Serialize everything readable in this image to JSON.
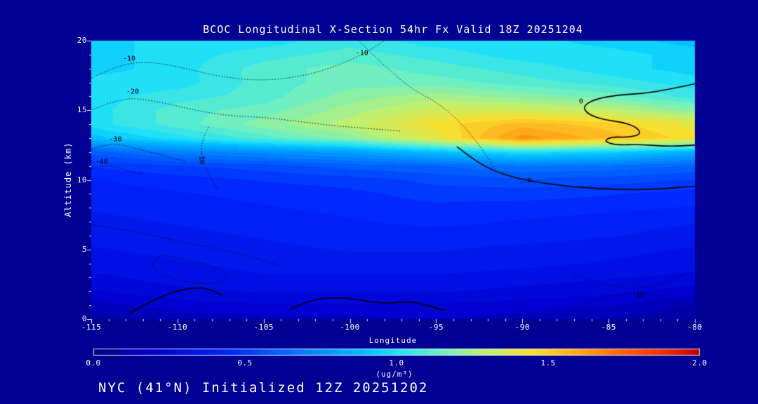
{
  "footer": "NYC (41°N) Initialized 12Z 20251202",
  "background_color": "#000092",
  "text_color": "#ffffff",
  "chart_data": {
    "type": "heatmap",
    "title": "BCOC Longitudinal X-Section 54hr  Fx Valid 18Z 20251204",
    "xlabel": "Longitude",
    "ylabel": "Altitude (km)",
    "x_range": [
      -115,
      -80
    ],
    "y_range": [
      0,
      20
    ],
    "x_ticks": [
      "-115",
      "-110",
      "-105",
      "-100",
      "-95",
      "-90",
      "-85",
      "-80"
    ],
    "y_ticks": [
      "0",
      "5",
      "10",
      "15",
      "20"
    ],
    "x": [
      -115,
      -110,
      -105,
      -100,
      -95,
      -90,
      -85,
      -80
    ],
    "y": [
      0,
      1,
      2,
      3,
      4,
      5,
      6,
      7,
      8,
      9,
      10,
      11,
      12,
      13,
      14,
      15,
      16,
      17,
      18,
      19,
      20
    ],
    "values": [
      [
        0.1,
        0.14,
        0.16,
        0.16,
        0.18,
        0.15,
        0.12,
        0.08
      ],
      [
        0.15,
        0.2,
        0.22,
        0.22,
        0.22,
        0.2,
        0.18,
        0.12
      ],
      [
        0.22,
        0.26,
        0.28,
        0.28,
        0.28,
        0.26,
        0.24,
        0.2
      ],
      [
        0.26,
        0.3,
        0.32,
        0.32,
        0.32,
        0.3,
        0.28,
        0.26
      ],
      [
        0.3,
        0.32,
        0.34,
        0.35,
        0.35,
        0.34,
        0.32,
        0.3
      ],
      [
        0.32,
        0.34,
        0.36,
        0.38,
        0.38,
        0.36,
        0.34,
        0.32
      ],
      [
        0.34,
        0.36,
        0.38,
        0.4,
        0.4,
        0.4,
        0.38,
        0.35
      ],
      [
        0.36,
        0.38,
        0.4,
        0.42,
        0.44,
        0.42,
        0.4,
        0.38
      ],
      [
        0.38,
        0.4,
        0.42,
        0.44,
        0.46,
        0.45,
        0.44,
        0.42
      ],
      [
        0.4,
        0.42,
        0.44,
        0.46,
        0.5,
        0.5,
        0.48,
        0.45
      ],
      [
        0.42,
        0.45,
        0.48,
        0.5,
        0.54,
        0.56,
        0.55,
        0.52
      ],
      [
        0.48,
        0.52,
        0.55,
        0.6,
        0.62,
        0.68,
        0.66,
        0.62
      ],
      [
        0.6,
        0.7,
        0.75,
        0.8,
        0.9,
        1.0,
        0.95,
        0.85
      ],
      [
        0.9,
        1.0,
        1.1,
        1.2,
        1.4,
        1.65,
        1.55,
        1.45
      ],
      [
        1.0,
        1.1,
        1.2,
        1.3,
        1.45,
        1.55,
        1.5,
        1.4
      ],
      [
        1.0,
        1.1,
        1.15,
        1.25,
        1.35,
        1.35,
        1.3,
        1.2
      ],
      [
        1.0,
        1.05,
        1.1,
        1.2,
        1.25,
        1.2,
        1.15,
        1.05
      ],
      [
        1.0,
        1.0,
        1.1,
        1.15,
        1.15,
        1.1,
        1.05,
        1.0
      ],
      [
        0.95,
        1.0,
        1.1,
        1.15,
        1.1,
        1.05,
        1.0,
        0.95
      ],
      [
        0.95,
        1.0,
        1.05,
        1.1,
        1.05,
        1.0,
        1.0,
        0.95
      ],
      [
        0.95,
        1.0,
        1.0,
        1.05,
        1.0,
        1.0,
        0.95,
        0.9
      ]
    ],
    "colormap_stops": [
      [
        0.0,
        "#000080"
      ],
      [
        0.2,
        "#0000d0"
      ],
      [
        0.45,
        "#0028ff"
      ],
      [
        0.7,
        "#0080ff"
      ],
      [
        0.9,
        "#00c0ff"
      ],
      [
        1.0,
        "#20e0f8"
      ],
      [
        1.15,
        "#70f0c0"
      ],
      [
        1.3,
        "#c0f070"
      ],
      [
        1.45,
        "#f8e030"
      ],
      [
        1.6,
        "#ffa818"
      ],
      [
        1.75,
        "#ff6008"
      ],
      [
        1.9,
        "#e82800"
      ],
      [
        2.0,
        "#c00000"
      ]
    ],
    "colorbar": {
      "min": 0.0,
      "max": 2.0,
      "ticks": [
        "0.0",
        "0.5",
        "1.0",
        "1.5",
        "2.0"
      ],
      "unit_label": "(ug/m³)"
    },
    "contour_lines": [
      {
        "label": "-10",
        "style": "dotted",
        "label_pos": [
          -112.8,
          18.7
        ],
        "points": [
          [
            -115,
            17.3
          ],
          [
            -113.4,
            18.3
          ],
          [
            -111.5,
            18.5
          ],
          [
            -109.5,
            18.0
          ],
          [
            -107.5,
            17.4
          ],
          [
            -105,
            17.1
          ],
          [
            -102.5,
            17.5
          ],
          [
            -100.5,
            18.3
          ],
          [
            -99,
            19.2
          ],
          [
            -98,
            20
          ]
        ]
      },
      {
        "label": "-10",
        "style": "dotted",
        "label_pos": [
          -99.3,
          19.1
        ],
        "points": [
          [
            -99.5,
            20
          ],
          [
            -98,
            18.2
          ],
          [
            -96.5,
            16.6
          ],
          [
            -95,
            15.6
          ],
          [
            -93.8,
            14.4
          ],
          [
            -92.8,
            13.0
          ],
          [
            -92,
            11.6
          ],
          [
            -91.6,
            10.8
          ]
        ]
      },
      {
        "label": "-20",
        "style": "dotted",
        "label_pos": [
          -112.6,
          16.3
        ],
        "points": [
          [
            -115,
            15.0
          ],
          [
            -113.2,
            16.0
          ],
          [
            -111,
            15.6
          ],
          [
            -109,
            15.0
          ],
          [
            -107,
            14.6
          ],
          [
            -105,
            14.5
          ],
          [
            -103,
            14.2
          ],
          [
            -101,
            13.9
          ],
          [
            -99,
            13.7
          ],
          [
            -97,
            13.5
          ]
        ]
      },
      {
        "label": "-30",
        "style": "dotted",
        "label_pos": [
          -113.6,
          12.9
        ],
        "points": [
          [
            -115,
            12.2
          ],
          [
            -113.8,
            12.7
          ],
          [
            -112.5,
            12.3
          ],
          [
            -111,
            11.8
          ],
          [
            -109.5,
            11.3
          ]
        ]
      },
      {
        "label": "-40",
        "style": "dotted",
        "label_pos": [
          -114.4,
          11.3
        ],
        "points": [
          [
            -115,
            10.8
          ],
          [
            -114.2,
            11.1
          ],
          [
            -113.2,
            10.8
          ],
          [
            -112,
            10.4
          ]
        ]
      },
      {
        "label": "-10",
        "style": "dotted",
        "rotate": 90,
        "label_pos": [
          -108.6,
          11.6
        ],
        "points": [
          [
            -108.2,
            13.8
          ],
          [
            -108.7,
            12.6
          ],
          [
            -108.5,
            11.2
          ],
          [
            -108.0,
            10.0
          ],
          [
            -107.6,
            9.2
          ]
        ]
      },
      {
        "label": "0",
        "style": "solid",
        "label_pos": [
          -89.6,
          9.9
        ],
        "points": [
          [
            -93.8,
            12.4
          ],
          [
            -93.0,
            11.6
          ],
          [
            -91.8,
            10.7
          ],
          [
            -90.3,
            10.1
          ],
          [
            -88.5,
            9.7
          ],
          [
            -86.5,
            9.45
          ],
          [
            -84.5,
            9.3
          ],
          [
            -82.5,
            9.3
          ],
          [
            -80,
            9.55
          ]
        ]
      },
      {
        "label": "0",
        "style": "solid",
        "label_pos": [
          -86.6,
          15.6
        ],
        "points": [
          [
            -80,
            16.9
          ],
          [
            -81.5,
            16.5
          ],
          [
            -83,
            16.2
          ],
          [
            -84.5,
            16.1
          ],
          [
            -85.8,
            15.8
          ],
          [
            -86.5,
            15.3
          ],
          [
            -86.2,
            14.7
          ],
          [
            -85.2,
            14.3
          ],
          [
            -84.2,
            14.15
          ],
          [
            -83.4,
            13.8
          ],
          [
            -83.1,
            13.3
          ],
          [
            -83.8,
            13.05
          ],
          [
            -84.8,
            13.1
          ],
          [
            -85.3,
            12.8
          ],
          [
            -84.6,
            12.5
          ],
          [
            -83.2,
            12.55
          ],
          [
            -81.5,
            12.4
          ],
          [
            -80,
            12.5
          ]
        ]
      },
      {
        "label": "",
        "style": "solid",
        "label_pos": null,
        "points": [
          [
            -103.5,
            0.7
          ],
          [
            -102.5,
            1.3
          ],
          [
            -101,
            1.6
          ],
          [
            -99.5,
            1.4
          ],
          [
            -98,
            1.1
          ],
          [
            -96.5,
            1.3
          ],
          [
            -95.5,
            1.0
          ],
          [
            -94.5,
            0.6
          ]
        ]
      },
      {
        "label": "",
        "style": "solid",
        "label_pos": null,
        "points": [
          [
            -112.8,
            0.4
          ],
          [
            -111.8,
            1.1
          ],
          [
            -110.8,
            1.7
          ],
          [
            -109.8,
            2.1
          ],
          [
            -108.8,
            2.3
          ],
          [
            -108,
            2.1
          ],
          [
            -107.4,
            1.7
          ]
        ]
      },
      {
        "label": "-10",
        "style": "dotted",
        "label_pos": [
          -83.3,
          1.7
        ],
        "points": [
          [
            -87.5,
            0.3
          ],
          [
            -86.5,
            1.0
          ],
          [
            -85.2,
            1.6
          ],
          [
            -83.8,
            1.9
          ],
          [
            -82.3,
            1.8
          ],
          [
            -81.2,
            1.3
          ],
          [
            -80.6,
            0.6
          ]
        ]
      },
      {
        "label": "",
        "style": "dotted",
        "label_pos": null,
        "points": [
          [
            -115,
            6.8
          ],
          [
            -112.5,
            6.3
          ],
          [
            -110,
            5.6
          ],
          [
            -107.5,
            5.0
          ],
          [
            -105.5,
            4.4
          ],
          [
            -104,
            3.8
          ]
        ]
      },
      {
        "label": "",
        "style": "dotted",
        "label_pos": null,
        "points": [
          [
            -111,
            4.6
          ],
          [
            -109,
            4.2
          ],
          [
            -107.5,
            3.6
          ],
          [
            -107,
            2.9
          ],
          [
            -108,
            2.5
          ],
          [
            -109.8,
            2.7
          ],
          [
            -111.2,
            3.3
          ],
          [
            -111.5,
            4.0
          ],
          [
            -111,
            4.6
          ]
        ]
      },
      {
        "label": "",
        "style": "dotted",
        "label_pos": null,
        "points": [
          [
            -87,
            3.2
          ],
          [
            -85.5,
            2.6
          ],
          [
            -84,
            2.2
          ],
          [
            -82.5,
            2.3
          ],
          [
            -81.2,
            2.8
          ],
          [
            -80.4,
            3.4
          ]
        ]
      }
    ]
  }
}
